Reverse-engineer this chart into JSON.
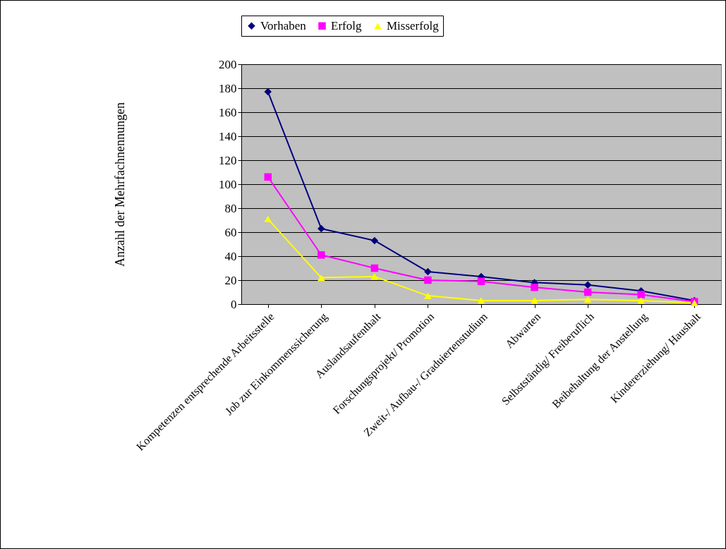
{
  "chart_data": {
    "type": "line",
    "ylabel": "Anzahl der Mehrfachnennungen",
    "categories": [
      "Kompetenzen entsprechende Arbeitsstelle",
      "Job zur Einkommenssicherung",
      "Auslandsaufenthalt",
      "Forschungsprojekt/ Promotion",
      "Zweit-/ Aufbau-/ Graduiertenstudium",
      "Abwarten",
      "Selbstständig/ Freiberuflich",
      "Beibehaltung der Anstellung",
      "Kindererziehung/ Haushalt"
    ],
    "series": [
      {
        "name": "Vorhaben",
        "color": "#000080",
        "marker": "diamond",
        "values": [
          177,
          63,
          53,
          27,
          23,
          18,
          16,
          11,
          3
        ]
      },
      {
        "name": "Erfolg",
        "color": "#ff00ff",
        "marker": "square",
        "values": [
          106,
          41,
          30,
          20,
          19,
          14,
          10,
          8,
          2
        ]
      },
      {
        "name": "Misserfolg",
        "color": "#ffff00",
        "marker": "triangle",
        "values": [
          71,
          22,
          23,
          7,
          3,
          3,
          4,
          3,
          1
        ]
      }
    ],
    "ylim": [
      0,
      200
    ],
    "yticks": [
      0,
      20,
      40,
      60,
      80,
      100,
      120,
      140,
      160,
      180,
      200
    ],
    "grid": "y",
    "legend": "top"
  }
}
